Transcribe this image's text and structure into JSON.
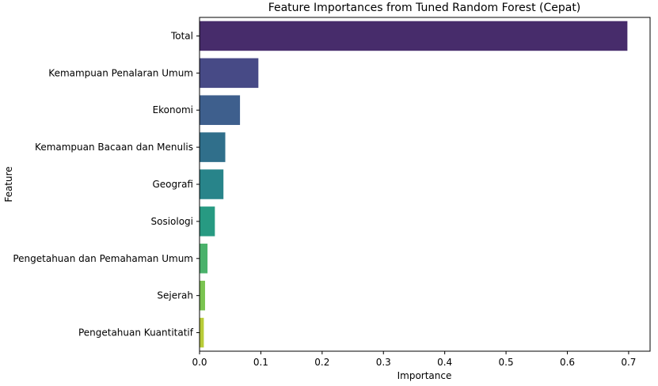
{
  "chart_data": {
    "type": "bar",
    "orientation": "horizontal",
    "title": "Feature Importances from Tuned Random Forest (Cepat)",
    "xlabel": "Importance",
    "ylabel": "Feature",
    "xlim": [
      0,
      0.735
    ],
    "xticks": [
      "0.0",
      "0.1",
      "0.2",
      "0.3",
      "0.4",
      "0.5",
      "0.6",
      "0.7"
    ],
    "grid": false,
    "categories": [
      "Total",
      "Kemampuan Penalaran Umum",
      "Ekonomi",
      "Kemampuan Bacaan dan Menulis",
      "Geografi",
      "Sosiologi",
      "Pengetahuan dan Pemahaman Umum",
      "Sejerah",
      "Pengetahuan Kuantitatif"
    ],
    "values": [
      0.698,
      0.096,
      0.066,
      0.042,
      0.039,
      0.025,
      0.013,
      0.009,
      0.007
    ],
    "colors": [
      "#472c6b",
      "#474a86",
      "#3e5f8d",
      "#306f8b",
      "#28848a",
      "#279a82",
      "#4ab26b",
      "#7ac450",
      "#b8cc38"
    ]
  }
}
